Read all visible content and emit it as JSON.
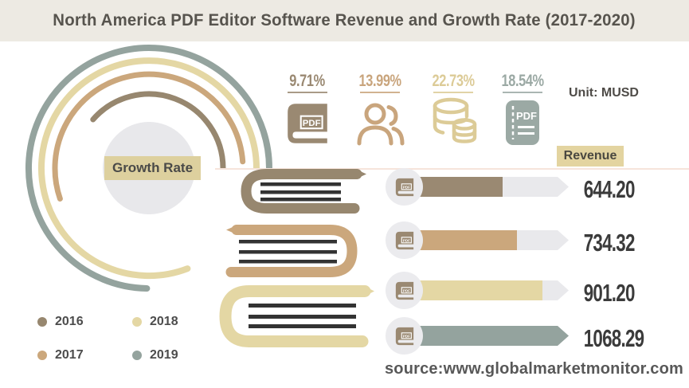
{
  "title": "North America PDF Editor Software Revenue and Growth Rate (2017-2020)",
  "unit_label": "Unit: MUSD",
  "source_text": "source:www.globalmarketmonitor.com",
  "growth_rate": {
    "center_label": "Growth Rate",
    "stats": [
      {
        "value": "9.71%",
        "icon": "pdf-book-icon",
        "color": "#9A8972"
      },
      {
        "value": "13.99%",
        "icon": "people-icon",
        "color": "#C9A57D"
      },
      {
        "value": "22.73%",
        "icon": "database-icon",
        "color": "#DCCB97"
      },
      {
        "value": "18.54%",
        "icon": "pdf-file-icon",
        "color": "#9BA9A4"
      }
    ]
  },
  "revenue": {
    "header_label": "Revenue"
  },
  "legend": [
    {
      "label": "2016",
      "color": "#97876F"
    },
    {
      "label": "2017",
      "color": "#CBA77C"
    },
    {
      "label": "2018",
      "color": "#E4D7A4"
    },
    {
      "label": "2019",
      "color": "#94A39E"
    }
  ],
  "chart_data": {
    "type": "bar",
    "title": "North America PDF Editor Software Revenue and Growth Rate (2017-2020)",
    "unit": "MUSD",
    "categories": [
      "2016",
      "2017",
      "2018",
      "2019"
    ],
    "series": [
      {
        "name": "Revenue",
        "values": [
          644.2,
          734.32,
          901.2,
          1068.29
        ],
        "labels": [
          "644.20",
          "734.32",
          "901.20",
          "1068.29"
        ],
        "colors": [
          "#9A8972",
          "#CBA77C",
          "#E4D7A4",
          "#94A39E"
        ]
      },
      {
        "name": "Growth Rate",
        "values": [
          9.71,
          13.99,
          22.73,
          18.54
        ],
        "labels": [
          "9.71%",
          "13.99%",
          "22.73%",
          "18.54%"
        ]
      }
    ],
    "legend_position": "bottom-left",
    "xlim": [
      0,
      1068.29
    ],
    "grid": false
  }
}
